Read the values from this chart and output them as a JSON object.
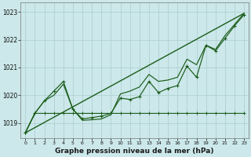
{
  "bg_color": "#cce8ea",
  "grid_color": "#aacccc",
  "line_color": "#1a5c1a",
  "xlabel": "Graphe pression niveau de la mer (hPa)",
  "ylim": [
    1018.45,
    1023.35
  ],
  "yticks": [
    1019,
    1020,
    1021,
    1022,
    1023
  ],
  "xlim": [
    -0.5,
    23.5
  ],
  "xticks": [
    0,
    1,
    2,
    3,
    4,
    5,
    6,
    7,
    8,
    9,
    10,
    11,
    12,
    13,
    14,
    15,
    16,
    17,
    18,
    19,
    20,
    21,
    22,
    23
  ],
  "series_jagged": [
    1018.65,
    1019.35,
    1019.8,
    1020.15,
    1020.5,
    1019.5,
    1019.15,
    1019.2,
    1019.25,
    1019.35,
    1019.9,
    1019.85,
    1019.95,
    1020.5,
    1020.1,
    1020.25,
    1020.35,
    1021.05,
    1020.65,
    1021.8,
    1021.6,
    1022.05,
    1022.5,
    1022.9
  ],
  "series_smooth": [
    1018.65,
    1019.35,
    1019.8,
    1020.0,
    1020.4,
    1019.5,
    1019.1,
    1019.12,
    1019.15,
    1019.3,
    1020.05,
    1020.15,
    1020.3,
    1020.75,
    1020.5,
    1020.55,
    1020.65,
    1021.3,
    1021.1,
    1021.8,
    1021.65,
    1022.15,
    1022.55,
    1022.95
  ],
  "series_flat": [
    1018.65,
    1019.35,
    1019.35,
    1019.35,
    1019.35,
    1019.35,
    1019.35,
    1019.35,
    1019.35,
    1019.35,
    1019.35,
    1019.35,
    1019.35,
    1019.35,
    1019.35,
    1019.35,
    1019.35,
    1019.35,
    1019.35,
    1019.35,
    1019.35,
    1019.35,
    1019.35,
    1019.35
  ],
  "trend_x": [
    0,
    23
  ],
  "trend_y": [
    1018.65,
    1022.95
  ],
  "ytick_labels": [
    "1019",
    "1020",
    "1021",
    "1022",
    "1023"
  ]
}
